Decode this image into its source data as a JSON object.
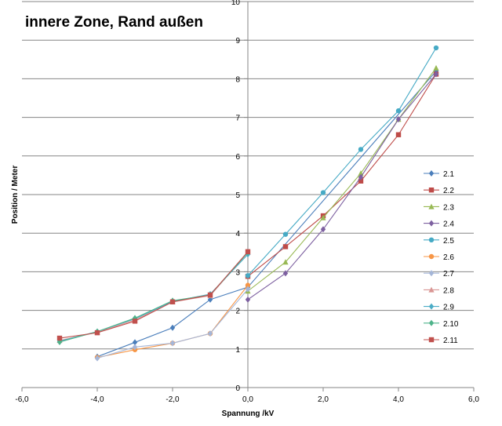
{
  "chart_data": {
    "type": "scatter",
    "title": "innere Zone, Rand außen",
    "xlabel": "Spannung /kV",
    "ylabel": "Position / Meter",
    "xlim": [
      -6,
      6
    ],
    "ylim": [
      0,
      10
    ],
    "x_ticks": [
      "-6,0",
      "-4,0",
      "-2,0",
      "0,0",
      "2,0",
      "4,0",
      "6,0"
    ],
    "y_ticks": [
      "0",
      "1",
      "2",
      "3",
      "4",
      "5",
      "6",
      "7",
      "8",
      "9",
      "10"
    ],
    "grid": "horizontal",
    "legend_position": "right",
    "series": [
      {
        "name": "2.1",
        "color": "#4a7ebb",
        "marker": "diamond",
        "x": [
          -4,
          -3,
          -2,
          -1,
          0,
          5
        ],
        "y": [
          0.8,
          1.17,
          1.55,
          2.28,
          2.6,
          8.2
        ]
      },
      {
        "name": "2.2",
        "color": "#be4b48",
        "marker": "square",
        "x": [
          0,
          1,
          2,
          3,
          4,
          5
        ],
        "y": [
          2.88,
          3.65,
          4.45,
          5.35,
          6.55,
          8.12
        ]
      },
      {
        "name": "2.3",
        "color": "#98b954",
        "marker": "triangle",
        "x": [
          0,
          1,
          2,
          3,
          4,
          5
        ],
        "y": [
          2.5,
          3.25,
          4.4,
          5.55,
          6.95,
          8.28
        ]
      },
      {
        "name": "2.4",
        "color": "#7d60a0",
        "marker": "diamond",
        "x": [
          0,
          1,
          2,
          3,
          4,
          5
        ],
        "y": [
          2.28,
          2.96,
          4.1,
          5.45,
          6.95,
          8.12
        ]
      },
      {
        "name": "2.5",
        "color": "#46aac5",
        "marker": "circle",
        "x": [
          0,
          1,
          2,
          3,
          4,
          5
        ],
        "y": [
          2.9,
          3.97,
          5.05,
          6.17,
          7.17,
          8.8
        ]
      },
      {
        "name": "2.6",
        "color": "#f79646",
        "marker": "circle",
        "x": [
          -4,
          -3,
          -2,
          -1,
          0
        ],
        "y": [
          0.78,
          0.98,
          1.15,
          1.4,
          2.65
        ]
      },
      {
        "name": "2.7",
        "color": "#a5b6d8",
        "marker": "diamond",
        "x": [
          -4,
          -3,
          -2,
          -1,
          0
        ],
        "y": [
          0.76,
          1.05,
          1.15,
          1.4,
          2.55
        ]
      },
      {
        "name": "2.8",
        "color": "#d99694",
        "marker": "triangle",
        "x": [
          -5,
          -4,
          -3,
          -2,
          -1,
          0
        ],
        "y": [
          1.22,
          1.43,
          1.75,
          2.22,
          2.38,
          3.5
        ]
      },
      {
        "name": "2.9",
        "color": "#4bacc6",
        "marker": "diamond",
        "x": [
          -5,
          -4,
          -3,
          -2,
          -1,
          0
        ],
        "y": [
          1.2,
          1.45,
          1.78,
          2.23,
          2.42,
          3.45
        ]
      },
      {
        "name": "2.10",
        "color": "#4eb38a",
        "marker": "diamond",
        "x": [
          -5,
          -4,
          -3,
          -2,
          -1,
          0
        ],
        "y": [
          1.18,
          1.45,
          1.8,
          2.25,
          2.4,
          3.5
        ]
      },
      {
        "name": "2.11",
        "color": "#c0504d",
        "marker": "square",
        "x": [
          -5,
          -4,
          -3,
          -2,
          -1,
          0
        ],
        "y": [
          1.28,
          1.42,
          1.72,
          2.22,
          2.4,
          3.52
        ]
      }
    ]
  }
}
